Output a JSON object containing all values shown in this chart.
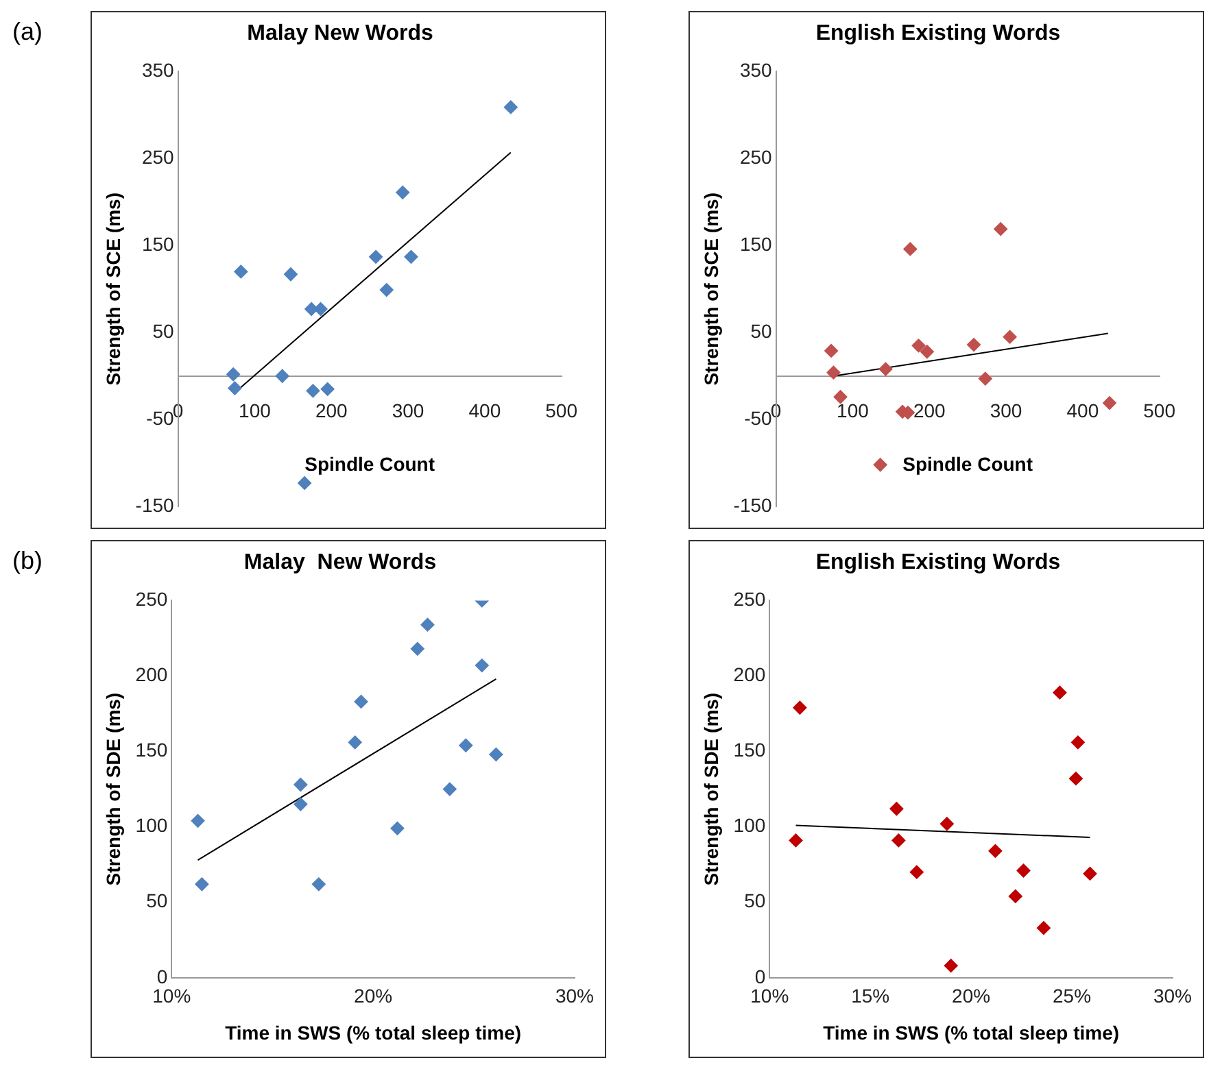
{
  "chart_data": [
    {
      "type": "scatter",
      "title": "Malay New Words",
      "xlabel": "Spindle Count",
      "ylabel": "Strength of SCE (ms)",
      "annotations": [
        "(a)"
      ],
      "xlim": [
        0,
        500
      ],
      "xticks": [
        0,
        100,
        200,
        300,
        400,
        500
      ],
      "ylim": [
        -150,
        350
      ],
      "yticks": [
        -150,
        -50,
        50,
        150,
        250,
        350
      ],
      "series": [
        {
          "type": "scatter",
          "marker": "diamond",
          "color": "#4f81bd",
          "x": [
            72,
            74,
            82,
            136,
            147,
            165,
            174,
            176,
            186,
            195,
            258,
            272,
            293,
            304,
            434
          ],
          "values": [
            2,
            -14,
            120,
            0,
            117,
            -123,
            77,
            -17,
            77,
            -15,
            137,
            99,
            211,
            137,
            309
          ]
        },
        {
          "type": "line",
          "marker": "none",
          "color": "#000000",
          "x": [
            74,
            434
          ],
          "values": [
            -19,
            257
          ]
        }
      ]
    },
    {
      "type": "scatter",
      "title": "English Existing Words",
      "xlabel": "Spindle Count",
      "ylabel": "Strength of SCE (ms)",
      "xlim": [
        0,
        500
      ],
      "xticks": [
        0,
        100,
        200,
        300,
        400,
        500
      ],
      "ylim": [
        -150,
        350
      ],
      "yticks": [
        -150,
        -50,
        50,
        150,
        250,
        350
      ],
      "series": [
        {
          "type": "scatter",
          "marker": "diamond",
          "color": "#c0504d",
          "x": [
            72,
            75,
            84,
            136,
            143,
            165,
            172,
            175,
            186,
            197,
            258,
            273,
            293,
            305,
            435
          ],
          "values": [
            29,
            4,
            -24,
            -102,
            8,
            -41,
            -42,
            146,
            35,
            28,
            36,
            -3,
            169,
            45,
            -31
          ]
        },
        {
          "type": "line",
          "marker": "none",
          "color": "#000000",
          "x": [
            75,
            433
          ],
          "values": [
            0,
            49
          ]
        }
      ]
    },
    {
      "type": "scatter",
      "title": "Malay  New Words",
      "xlabel": "Time in SWS (% total sleep time)",
      "ylabel": "Strength of SDE (ms)",
      "annotations": [
        "(b)"
      ],
      "xlim": [
        10,
        30
      ],
      "xticks": [
        {
          "value": 10,
          "label": "10%"
        },
        {
          "value": 20,
          "label": "20%"
        },
        {
          "value": 30,
          "label": "30%"
        }
      ],
      "ylim": [
        0,
        250
      ],
      "yticks": [
        0,
        50,
        100,
        150,
        200,
        250
      ],
      "series": [
        {
          "type": "scatter",
          "marker": "diamond",
          "color": "#4f81bd",
          "x": [
            11.3,
            11.5,
            16.4,
            16.4,
            17.3,
            19.1,
            19.4,
            21.2,
            22.2,
            22.7,
            23.8,
            24.6,
            25.4,
            25.4,
            26.1
          ],
          "values": [
            104,
            62,
            128,
            115,
            62,
            156,
            183,
            99,
            218,
            234,
            125,
            154,
            207,
            250,
            148
          ]
        },
        {
          "type": "line",
          "marker": "none",
          "color": "#000000",
          "x": [
            11.3,
            26.1
          ],
          "values": [
            78,
            198
          ]
        }
      ]
    },
    {
      "type": "scatter",
      "title": "English Existing Words",
      "xlabel": "Time in SWS (% total sleep time)",
      "ylabel": "Strength of SDE (ms)",
      "xlim": [
        10,
        30
      ],
      "xticks": [
        {
          "value": 10,
          "label": "10%"
        },
        {
          "value": 15,
          "label": "15%"
        },
        {
          "value": 20,
          "label": "20%"
        },
        {
          "value": 25,
          "label": "25%"
        },
        {
          "value": 30,
          "label": "30%"
        }
      ],
      "ylim": [
        0,
        250
      ],
      "yticks": [
        0,
        50,
        100,
        150,
        200,
        250
      ],
      "series": [
        {
          "type": "scatter",
          "marker": "diamond",
          "color": "#c00000",
          "x": [
            11.3,
            11.5,
            16.3,
            16.4,
            17.3,
            18.8,
            19.0,
            21.2,
            22.2,
            22.6,
            23.6,
            24.4,
            25.2,
            25.3,
            25.9
          ],
          "values": [
            91,
            179,
            112,
            91,
            70,
            102,
            8,
            84,
            54,
            71,
            33,
            189,
            132,
            156,
            69
          ]
        },
        {
          "type": "line",
          "marker": "none",
          "color": "#000000",
          "x": [
            11.3,
            25.9
          ],
          "values": [
            101,
            93
          ]
        }
      ]
    }
  ]
}
